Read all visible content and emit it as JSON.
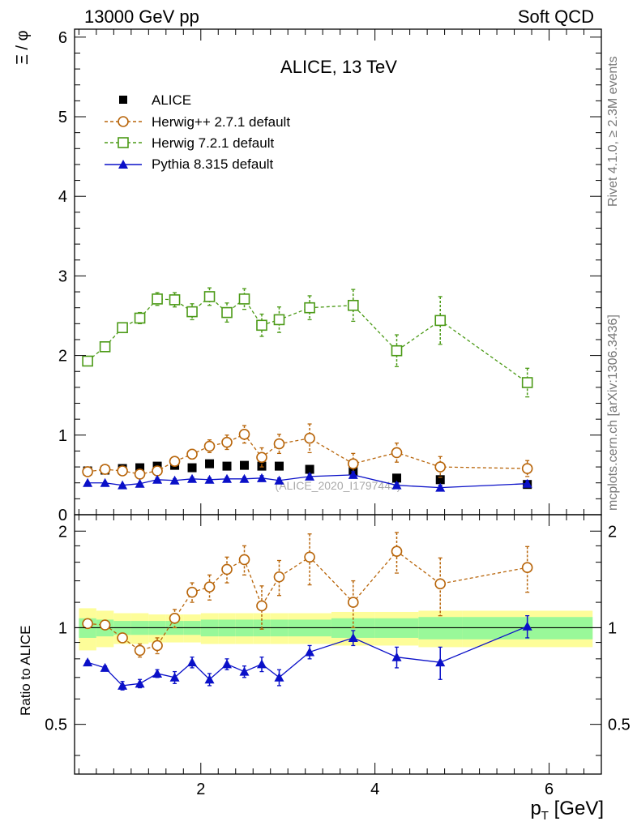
{
  "header": {
    "left": "13000 GeV pp",
    "right": "Soft QCD"
  },
  "side_labels": {
    "rivet": "Rivet 4.1.0, ≥ 2.3M events",
    "mcplots": "mcplots.cern.ch [arXiv:1306.3436]"
  },
  "chart_data": [
    {
      "type": "scatter",
      "title": "ALICE, 13 TeV",
      "ylabel": "Ξ / φ",
      "xlabel": "p_T [GeV]",
      "watermark": "(ALICE_2020_I1797443)",
      "xlim": [
        0.55,
        6.6
      ],
      "ylim": [
        0,
        6.1
      ],
      "yticks": [
        "0",
        "1",
        "2",
        "3",
        "4",
        "5",
        "6"
      ],
      "legend_position": "top-left",
      "x": [
        0.7,
        0.9,
        1.1,
        1.3,
        1.5,
        1.7,
        1.9,
        2.1,
        2.3,
        2.5,
        2.7,
        2.9,
        3.25,
        3.75,
        4.25,
        4.75,
        5.75
      ],
      "series": [
        {
          "name": "ALICE",
          "color": "#000000",
          "marker": "filled-square",
          "line": "none",
          "values": [
            0.55,
            0.56,
            0.58,
            0.59,
            0.61,
            0.62,
            0.59,
            0.64,
            0.61,
            0.62,
            0.61,
            0.61,
            0.57,
            0.55,
            0.46,
            0.44,
            0.38
          ]
        },
        {
          "name": "Herwig++ 2.7.1 default",
          "color": "#b8650a",
          "marker": "open-circle",
          "line": "dashed",
          "values": [
            0.54,
            0.57,
            0.55,
            0.51,
            0.55,
            0.67,
            0.76,
            0.86,
            0.91,
            1.01,
            0.72,
            0.89,
            0.96,
            0.64,
            0.78,
            0.6,
            0.58
          ],
          "errors": [
            0.03,
            0.03,
            0.03,
            0.04,
            0.04,
            0.05,
            0.06,
            0.08,
            0.09,
            0.11,
            0.12,
            0.12,
            0.18,
            0.13,
            0.12,
            0.13,
            0.1
          ]
        },
        {
          "name": "Herwig 7.2.1 default",
          "color": "#4b9a16",
          "marker": "open-square",
          "line": "dashed",
          "values": [
            1.93,
            2.11,
            2.35,
            2.47,
            2.71,
            2.7,
            2.55,
            2.74,
            2.54,
            2.71,
            2.38,
            2.45,
            2.6,
            2.63,
            2.06,
            2.44,
            1.66
          ],
          "errors": [
            0.04,
            0.05,
            0.06,
            0.07,
            0.08,
            0.09,
            0.1,
            0.11,
            0.12,
            0.13,
            0.14,
            0.16,
            0.15,
            0.2,
            0.2,
            0.3,
            0.18
          ]
        },
        {
          "name": "Pythia 8.315 default",
          "color": "#0a10c8",
          "marker": "filled-triangle",
          "line": "solid",
          "values": [
            0.4,
            0.4,
            0.37,
            0.39,
            0.44,
            0.43,
            0.45,
            0.44,
            0.45,
            0.45,
            0.46,
            0.43,
            0.48,
            0.5,
            0.37,
            0.34,
            0.39
          ],
          "errors": [
            0.01,
            0.01,
            0.01,
            0.01,
            0.02,
            0.02,
            0.02,
            0.02,
            0.02,
            0.02,
            0.03,
            0.03,
            0.03,
            0.04,
            0.03,
            0.03,
            0.04
          ]
        }
      ]
    },
    {
      "type": "scatter",
      "ylabel": "Ratio to ALICE",
      "xlabel": "p_T [GeV]",
      "xlim": [
        0.55,
        6.6
      ],
      "ylim": [
        0.35,
        2.25
      ],
      "yscale": "log",
      "yticks": [
        "0.5",
        "1",
        "2"
      ],
      "xticks": [
        "2",
        "4",
        "6"
      ],
      "x": [
        0.7,
        0.9,
        1.1,
        1.3,
        1.5,
        1.7,
        1.9,
        2.1,
        2.3,
        2.5,
        2.7,
        2.9,
        3.25,
        3.75,
        4.25,
        4.75,
        5.75
      ],
      "x_edges": [
        0.6,
        0.8,
        1.0,
        1.2,
        1.4,
        1.6,
        1.8,
        2.0,
        2.2,
        2.4,
        2.6,
        2.8,
        3.0,
        3.5,
        4.0,
        4.5,
        5.0,
        6.5
      ],
      "bands": {
        "stat_green_halfwidth": [
          0.07,
          0.06,
          0.05,
          0.05,
          0.05,
          0.05,
          0.05,
          0.06,
          0.06,
          0.06,
          0.06,
          0.06,
          0.06,
          0.07,
          0.07,
          0.08,
          0.08
        ],
        "total_yellow_halfwidth": [
          0.15,
          0.13,
          0.11,
          0.11,
          0.1,
          0.1,
          0.1,
          0.11,
          0.11,
          0.11,
          0.11,
          0.11,
          0.11,
          0.12,
          0.12,
          0.13,
          0.13
        ]
      },
      "series": [
        {
          "name": "Herwig++ 2.7.1 default",
          "color": "#b8650a",
          "marker": "open-circle",
          "line": "dashed",
          "values": [
            1.03,
            1.02,
            0.93,
            0.85,
            0.88,
            1.07,
            1.29,
            1.34,
            1.52,
            1.63,
            1.17,
            1.44,
            1.66,
            1.2,
            1.73,
            1.37,
            1.54
          ],
          "errors": [
            0.02,
            0.02,
            0.03,
            0.04,
            0.05,
            0.07,
            0.09,
            0.12,
            0.14,
            0.17,
            0.18,
            0.18,
            0.3,
            0.2,
            0.25,
            0.28,
            0.25
          ]
        },
        {
          "name": "Pythia 8.315 default",
          "color": "#0a10c8",
          "marker": "filled-triangle",
          "line": "solid",
          "values": [
            0.78,
            0.75,
            0.66,
            0.67,
            0.72,
            0.7,
            0.78,
            0.69,
            0.77,
            0.73,
            0.77,
            0.7,
            0.84,
            0.93,
            0.81,
            0.78,
            1.01
          ],
          "errors": [
            0.01,
            0.01,
            0.02,
            0.02,
            0.02,
            0.03,
            0.03,
            0.03,
            0.03,
            0.03,
            0.04,
            0.04,
            0.04,
            0.05,
            0.06,
            0.09,
            0.08
          ]
        }
      ]
    }
  ]
}
